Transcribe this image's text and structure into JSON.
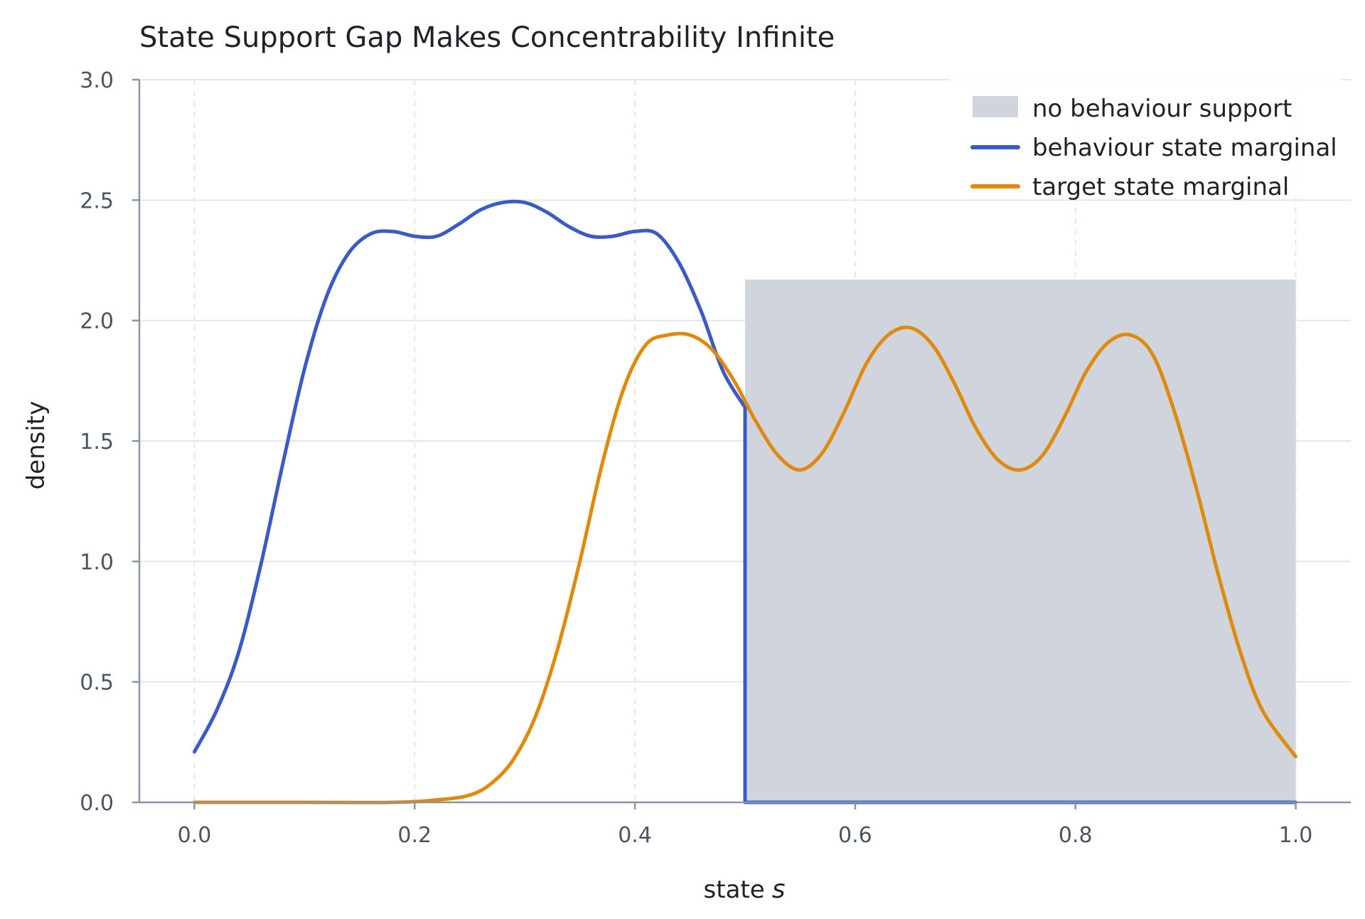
{
  "chart_data": {
    "type": "line",
    "title": "State Support Gap Makes Concentrability Infinite",
    "xlabel": "state",
    "xlabel_symbol": "s",
    "ylabel": "density",
    "xlim": [
      -0.05,
      1.05
    ],
    "ylim": [
      0,
      3.0
    ],
    "xticks": [
      0.0,
      0.2,
      0.4,
      0.6,
      0.8,
      1.0
    ],
    "xtick_labels": [
      "0.0",
      "0.2",
      "0.4",
      "0.6",
      "0.8",
      "1.0"
    ],
    "yticks": [
      0.0,
      0.5,
      1.0,
      1.5,
      2.0,
      2.5,
      3.0
    ],
    "ytick_labels": [
      "0.0",
      "0.5",
      "1.0",
      "1.5",
      "2.0",
      "2.5",
      "3.0"
    ],
    "grid": true,
    "legend_position": "top-right",
    "shaded_region": {
      "name": "no behaviour support",
      "x_range": [
        0.5,
        1.0
      ],
      "y_range": [
        0,
        2.17
      ],
      "color": "#d0d4dc"
    },
    "series": [
      {
        "name": "behaviour state marginal",
        "color": "#3a5bc7",
        "x": [
          0.0,
          0.02,
          0.04,
          0.06,
          0.08,
          0.1,
          0.12,
          0.14,
          0.16,
          0.18,
          0.2,
          0.22,
          0.24,
          0.26,
          0.28,
          0.3,
          0.32,
          0.34,
          0.36,
          0.38,
          0.4,
          0.42,
          0.44,
          0.46,
          0.48,
          0.5,
          0.5,
          0.52,
          0.6,
          0.7,
          0.8,
          0.9,
          1.0
        ],
        "y": [
          0.21,
          0.38,
          0.62,
          0.98,
          1.4,
          1.8,
          2.1,
          2.28,
          2.36,
          2.37,
          2.35,
          2.35,
          2.4,
          2.46,
          2.49,
          2.49,
          2.45,
          2.39,
          2.35,
          2.35,
          2.37,
          2.36,
          2.24,
          2.04,
          1.79,
          1.64,
          0.0,
          0.0,
          0.0,
          0.0,
          0.0,
          0.0,
          0.0
        ]
      },
      {
        "name": "target state marginal",
        "color": "#e08a0b",
        "x": [
          0.0,
          0.1,
          0.18,
          0.22,
          0.25,
          0.27,
          0.29,
          0.31,
          0.33,
          0.35,
          0.37,
          0.39,
          0.41,
          0.43,
          0.45,
          0.47,
          0.49,
          0.51,
          0.53,
          0.55,
          0.57,
          0.59,
          0.61,
          0.63,
          0.65,
          0.67,
          0.69,
          0.71,
          0.73,
          0.75,
          0.77,
          0.79,
          0.81,
          0.83,
          0.85,
          0.87,
          0.89,
          0.91,
          0.93,
          0.95,
          0.97,
          1.0
        ],
        "y": [
          0.0,
          0.0,
          0.0,
          0.01,
          0.03,
          0.08,
          0.18,
          0.36,
          0.64,
          1.0,
          1.4,
          1.72,
          1.9,
          1.94,
          1.94,
          1.88,
          1.75,
          1.58,
          1.44,
          1.38,
          1.45,
          1.62,
          1.82,
          1.94,
          1.97,
          1.9,
          1.74,
          1.55,
          1.42,
          1.38,
          1.44,
          1.6,
          1.79,
          1.91,
          1.94,
          1.86,
          1.62,
          1.3,
          0.94,
          0.62,
          0.38,
          0.19
        ]
      }
    ]
  }
}
